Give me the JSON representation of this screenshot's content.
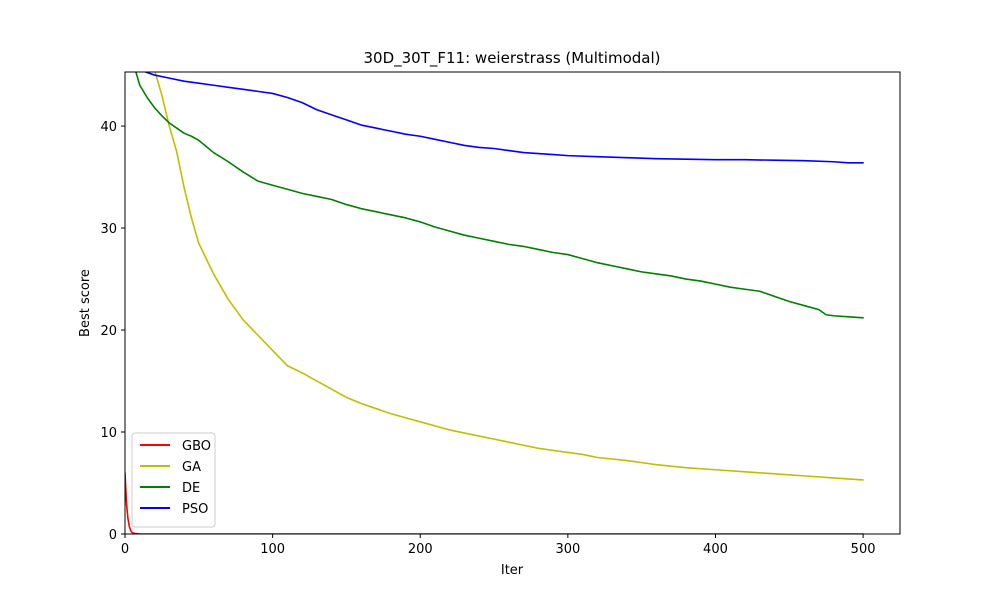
{
  "chart_data": {
    "type": "line",
    "title": "30D_30T_F11: weierstrass (Multimodal)",
    "xlabel": "Iter",
    "ylabel": "Best score",
    "xlim": [
      0,
      525
    ],
    "ylim": [
      0,
      45.3
    ],
    "xticks": [
      0,
      100,
      200,
      300,
      400,
      500
    ],
    "yticks": [
      0,
      10,
      20,
      30,
      40
    ],
    "grid": false,
    "legend_position": "lower-left",
    "series": [
      {
        "name": "GBO",
        "color": "#ff0000",
        "x": [
          0,
          1,
          2,
          3,
          4,
          5,
          7,
          10,
          20,
          500
        ],
        "y": [
          6.0,
          3.0,
          1.5,
          0.7,
          0.3,
          0.12,
          0.04,
          0.01,
          0.0,
          0.0
        ]
      },
      {
        "name": "GA",
        "color": "#bfbf00",
        "x": [
          18,
          25,
          30,
          35,
          40,
          45,
          50,
          55,
          60,
          70,
          80,
          90,
          100,
          110,
          120,
          130,
          140,
          150,
          160,
          170,
          180,
          190,
          200,
          210,
          220,
          230,
          240,
          250,
          260,
          270,
          280,
          290,
          300,
          310,
          320,
          340,
          350,
          360,
          380,
          400,
          420,
          440,
          460,
          480,
          490,
          500
        ],
        "y": [
          46.5,
          43.0,
          40.0,
          37.5,
          34.0,
          31.0,
          28.5,
          27.0,
          25.5,
          23.0,
          21.0,
          19.5,
          18.0,
          16.5,
          15.8,
          15.0,
          14.2,
          13.4,
          12.8,
          12.3,
          11.8,
          11.4,
          11.0,
          10.6,
          10.2,
          9.9,
          9.6,
          9.3,
          9.0,
          8.7,
          8.4,
          8.2,
          8.0,
          7.8,
          7.5,
          7.2,
          7.0,
          6.8,
          6.5,
          6.3,
          6.1,
          5.9,
          5.7,
          5.5,
          5.4,
          5.3
        ]
      },
      {
        "name": "DE",
        "color": "#008000",
        "x": [
          7,
          10,
          15,
          20,
          25,
          30,
          35,
          40,
          45,
          50,
          55,
          60,
          70,
          80,
          90,
          100,
          110,
          120,
          130,
          140,
          150,
          160,
          170,
          180,
          190,
          200,
          210,
          220,
          230,
          240,
          250,
          260,
          270,
          280,
          290,
          300,
          310,
          320,
          330,
          340,
          350,
          360,
          370,
          380,
          390,
          400,
          410,
          420,
          430,
          440,
          450,
          460,
          470,
          475,
          480,
          490,
          500
        ],
        "y": [
          45.5,
          44.0,
          42.8,
          41.8,
          41.0,
          40.3,
          39.8,
          39.3,
          39.0,
          38.6,
          38.0,
          37.4,
          36.5,
          35.5,
          34.6,
          34.2,
          33.8,
          33.4,
          33.1,
          32.8,
          32.3,
          31.9,
          31.6,
          31.3,
          31.0,
          30.6,
          30.1,
          29.7,
          29.3,
          29.0,
          28.7,
          28.4,
          28.2,
          27.9,
          27.6,
          27.4,
          27.0,
          26.6,
          26.3,
          26.0,
          25.7,
          25.5,
          25.3,
          25.0,
          24.8,
          24.5,
          24.2,
          24.0,
          23.8,
          23.3,
          22.8,
          22.4,
          22.0,
          21.5,
          21.4,
          21.3,
          21.2
        ]
      },
      {
        "name": "PSO",
        "color": "#0000ff",
        "x": [
          10,
          20,
          30,
          40,
          50,
          60,
          70,
          80,
          90,
          100,
          110,
          120,
          130,
          140,
          150,
          160,
          170,
          180,
          190,
          200,
          210,
          220,
          230,
          240,
          250,
          260,
          270,
          280,
          290,
          300,
          320,
          340,
          360,
          380,
          400,
          420,
          440,
          460,
          480,
          490,
          500
        ],
        "y": [
          45.5,
          45.0,
          44.7,
          44.4,
          44.2,
          44.0,
          43.8,
          43.6,
          43.4,
          43.2,
          42.8,
          42.3,
          41.6,
          41.1,
          40.6,
          40.1,
          39.8,
          39.5,
          39.2,
          39.0,
          38.7,
          38.4,
          38.1,
          37.9,
          37.8,
          37.6,
          37.4,
          37.3,
          37.2,
          37.1,
          37.0,
          36.9,
          36.8,
          36.75,
          36.7,
          36.7,
          36.65,
          36.6,
          36.5,
          36.4,
          36.4
        ]
      }
    ]
  }
}
